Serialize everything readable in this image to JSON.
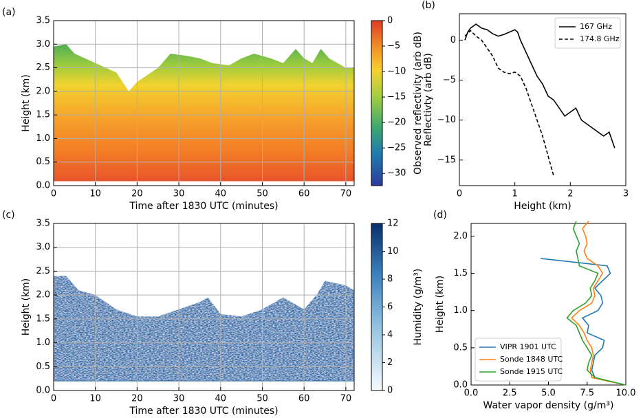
{
  "chart_data": [
    {
      "type": "heatmap",
      "label": "(a)",
      "fill": "A",
      "xlabel": "Time after 1830 UTC (minutes)",
      "ylabel": "Height (km)",
      "xlim": [
        0,
        72
      ],
      "xticks": [
        0,
        10,
        20,
        30,
        40,
        50,
        60,
        70
      ],
      "ylim": [
        0,
        3.5
      ],
      "yticks": [
        {
          "value": 0,
          "label": "0.0"
        },
        0.5,
        {
          "value": 1,
          "label": "1.0"
        },
        1.5,
        {
          "value": 2,
          "label": "2.0"
        },
        2.5,
        {
          "value": 3,
          "label": "3.0"
        },
        3.5
      ],
      "grid": true,
      "x": [
        0,
        3,
        5,
        10,
        15,
        18,
        20,
        25,
        28,
        32,
        35,
        38,
        42,
        45,
        48,
        52,
        55,
        58,
        60,
        62,
        64,
        66,
        70,
        72
      ],
      "top": [
        2.95,
        3.0,
        2.8,
        2.6,
        2.4,
        2.0,
        2.2,
        2.5,
        2.8,
        2.75,
        2.7,
        2.6,
        2.55,
        2.7,
        2.8,
        2.7,
        2.6,
        2.9,
        2.7,
        2.6,
        2.9,
        2.7,
        2.5,
        2.5
      ],
      "base": 0.1,
      "colorbar": {
        "label": "Observed reflectivity (arb dB)",
        "lim": [
          -32.4,
          0
        ],
        "ticks": [
          0,
          {
            "value": -5,
            "label": "−5"
          },
          {
            "value": -10,
            "label": "−10"
          },
          {
            "value": -15,
            "label": "−15"
          },
          {
            "value": -20,
            "label": "−20"
          },
          {
            "value": -25,
            "label": "−25"
          },
          {
            "value": -30,
            "label": "−30"
          }
        ]
      }
    },
    {
      "type": "line",
      "label": "(b)",
      "xlabel": "Height (km)",
      "ylabel": "Reflectivty (arb dB)",
      "xlim": [
        0,
        3
      ],
      "xticks": [
        0,
        1,
        2,
        3
      ],
      "ylim": [
        -18.2,
        3.3
      ],
      "yticks": [
        0,
        {
          "value": -5,
          "label": "−5"
        },
        {
          "value": -10,
          "label": "−10"
        },
        {
          "value": -15,
          "label": "−15"
        }
      ],
      "grid": false,
      "legend": "upper right",
      "series": [
        {
          "name": "167 GHz",
          "color": "#000000",
          "dash": false,
          "x": [
            0.1,
            0.15,
            0.2,
            0.3,
            0.4,
            0.5,
            0.6,
            0.7,
            0.8,
            0.9,
            1.0,
            1.05,
            1.1,
            1.2,
            1.3,
            1.4,
            1.5,
            1.6,
            1.7,
            1.8,
            1.9,
            2.0,
            2.1,
            2.2,
            2.3,
            2.4,
            2.5,
            2.6,
            2.7,
            2.8
          ],
          "values": [
            0,
            1,
            1.5,
            2,
            1.5,
            1.3,
            0.8,
            0.5,
            0.7,
            1.0,
            1.3,
            1.0,
            0,
            -1.5,
            -3,
            -4.5,
            -5.5,
            -7,
            -7.5,
            -8.5,
            -9.5,
            -9,
            -8.5,
            -10,
            -10.5,
            -11,
            -11.5,
            -12,
            -11.5,
            -13.5
          ]
        },
        {
          "name": "174.8 GHz",
          "color": "#000000",
          "dash": true,
          "x": [
            0.1,
            0.2,
            0.3,
            0.4,
            0.5,
            0.6,
            0.7,
            0.8,
            0.9,
            1.0,
            1.1,
            1.2,
            1.3,
            1.4,
            1.5,
            1.6,
            1.7
          ],
          "values": [
            0.5,
            1.2,
            0.5,
            0,
            -1,
            -2,
            -3.5,
            -4,
            -4.2,
            -4,
            -4.5,
            -6,
            -8,
            -10,
            -12,
            -14.5,
            -17
          ]
        }
      ]
    },
    {
      "type": "heatmap",
      "label": "(c)",
      "fill": "C",
      "xlabel": "Time after 1830 UTC (minutes)",
      "ylabel": "Height (km)",
      "xlim": [
        0,
        72
      ],
      "xticks": [
        0,
        10,
        20,
        30,
        40,
        50,
        60,
        70
      ],
      "ylim": [
        0,
        3.5
      ],
      "yticks": [
        {
          "value": 0,
          "label": "0.0"
        },
        0.5,
        {
          "value": 1,
          "label": "1.0"
        },
        1.5,
        {
          "value": 2,
          "label": "2.0"
        },
        2.5,
        {
          "value": 3,
          "label": "3.0"
        },
        3.5
      ],
      "grid": true,
      "x": [
        0,
        3,
        6,
        10,
        15,
        20,
        25,
        30,
        35,
        37,
        40,
        45,
        50,
        55,
        60,
        63,
        65,
        70,
        72
      ],
      "top": [
        2.4,
        2.4,
        2.1,
        2.0,
        1.7,
        1.55,
        1.55,
        1.7,
        1.85,
        1.95,
        1.6,
        1.55,
        1.7,
        1.95,
        1.7,
        2.0,
        2.3,
        2.2,
        2.1
      ],
      "base": 0.2,
      "colorbar": {
        "label": "Humidity (g/m³)",
        "lim": [
          0,
          12
        ],
        "ticks": [
          0,
          2,
          4,
          6,
          8,
          10,
          12
        ]
      }
    },
    {
      "type": "line",
      "label": "(d)",
      "orient": "vertical",
      "xlabel": "Water vapor density (g/m³)",
      "ylabel": "Height (km)",
      "xlim": [
        0,
        10
      ],
      "xticks": [
        {
          "value": 0,
          "label": "0.0"
        },
        2.5,
        {
          "value": 5,
          "label": "5.0"
        },
        7.5,
        {
          "value": 10,
          "label": "10.0"
        }
      ],
      "ylim": [
        0,
        2.17
      ],
      "yticks": [
        {
          "value": 0,
          "label": "0.0"
        },
        0.5,
        {
          "value": 1,
          "label": "1.0"
        },
        1.5,
        {
          "value": 2,
          "label": "2.0"
        }
      ],
      "grid": false,
      "legend": "lower left",
      "series": [
        {
          "name": "VIPR 1901 UTC",
          "color": "#1f77b4",
          "dash": false,
          "x": [
            8.0,
            7.8,
            7.9,
            8.0,
            8.5,
            8.6,
            7.5,
            7.6,
            7.2,
            8.2,
            8.5,
            8.4,
            8.0,
            8.5,
            9.0,
            8.8,
            4.5
          ],
          "values": [
            0.1,
            0.2,
            0.3,
            0.4,
            0.5,
            0.6,
            0.7,
            0.8,
            0.9,
            1.0,
            1.1,
            1.2,
            1.3,
            1.4,
            1.5,
            1.6,
            1.7
          ]
        },
        {
          "name": "Sonde 1848 UTC",
          "color": "#ff7f0e",
          "dash": false,
          "x": [
            10,
            7.8,
            7.7,
            7.8,
            7.9,
            7.8,
            7.5,
            7.3,
            7.0,
            6.5,
            7.0,
            7.8,
            8.0,
            7.9,
            8.2,
            8.5,
            8.2,
            7.5,
            7.3,
            7.5,
            7.4,
            7.2,
            7.6
          ],
          "values": [
            0,
            0.1,
            0.2,
            0.3,
            0.4,
            0.5,
            0.6,
            0.7,
            0.8,
            0.9,
            1.0,
            1.1,
            1.2,
            1.3,
            1.4,
            1.5,
            1.6,
            1.7,
            1.8,
            1.9,
            2.0,
            2.1,
            2.2
          ]
        },
        {
          "name": "Sonde 1915 UTC",
          "color": "#2ca02c",
          "dash": false,
          "x": [
            10,
            8.0,
            7.5,
            7.6,
            7.8,
            7.5,
            7.2,
            7.0,
            6.8,
            6.2,
            6.6,
            7.4,
            7.8,
            7.7,
            8.0,
            8.2,
            7.0,
            6.9,
            6.8,
            7.0,
            6.8,
            6.6,
            6.8
          ],
          "values": [
            0,
            0.1,
            0.2,
            0.3,
            0.4,
            0.5,
            0.6,
            0.7,
            0.8,
            0.9,
            1.0,
            1.1,
            1.2,
            1.3,
            1.4,
            1.5,
            1.6,
            1.7,
            1.8,
            1.9,
            2.0,
            2.1,
            2.2
          ]
        }
      ]
    }
  ]
}
